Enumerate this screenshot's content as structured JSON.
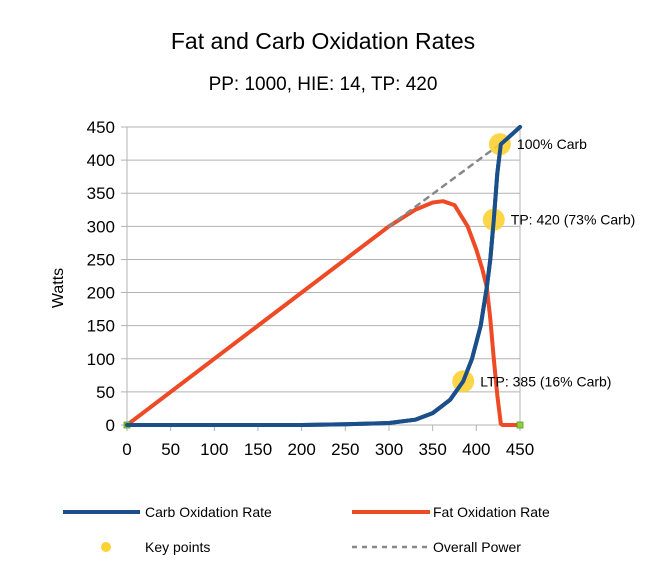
{
  "chart_data": {
    "type": "line",
    "title": "Fat and Carb Oxidation Rates",
    "subtitle": "PP: 1000, HIE: 14, TP: 420",
    "xlabel": "",
    "ylabel": "Watts",
    "xlim": [
      0,
      450
    ],
    "ylim": [
      0,
      450
    ],
    "xticks": [
      0,
      50,
      100,
      150,
      200,
      250,
      300,
      350,
      400,
      450
    ],
    "yticks": [
      0,
      50,
      100,
      150,
      200,
      250,
      300,
      350,
      400,
      450
    ],
    "grid": "horizontal",
    "legend_position": "bottom",
    "series": [
      {
        "name": "Carb Oxidation Rate",
        "color": "#1b4f8a",
        "style": "solid",
        "points": [
          [
            0,
            0
          ],
          [
            100,
            0
          ],
          [
            200,
            0
          ],
          [
            250,
            1
          ],
          [
            300,
            3
          ],
          [
            330,
            8
          ],
          [
            350,
            18
          ],
          [
            370,
            38
          ],
          [
            385,
            66
          ],
          [
            395,
            100
          ],
          [
            405,
            150
          ],
          [
            412,
            208
          ],
          [
            416,
            250
          ],
          [
            420,
            310
          ],
          [
            424,
            380
          ],
          [
            428,
            424
          ],
          [
            435,
            432
          ],
          [
            450,
            450
          ]
        ]
      },
      {
        "name": "Fat Oxidation Rate",
        "color": "#ee4a25",
        "style": "solid",
        "points": [
          [
            0,
            0
          ],
          [
            300,
            300
          ],
          [
            330,
            325
          ],
          [
            350,
            336
          ],
          [
            362,
            338
          ],
          [
            375,
            332
          ],
          [
            390,
            300
          ],
          [
            400,
            265
          ],
          [
            407,
            235
          ],
          [
            412,
            208
          ],
          [
            416,
            160
          ],
          [
            420,
            100
          ],
          [
            424,
            45
          ],
          [
            428,
            2
          ],
          [
            430,
            0
          ],
          [
            450,
            0
          ]
        ]
      },
      {
        "name": "Overall Power",
        "color": "#888888",
        "style": "dashed",
        "points": [
          [
            300,
            300
          ],
          [
            427,
            424
          ]
        ]
      }
    ],
    "key_points": {
      "name": "Key points",
      "color": "#fcd234",
      "points": [
        {
          "x": 385,
          "y": 66,
          "label": "LTP: 385 (16% Carb)"
        },
        {
          "x": 420,
          "y": 310,
          "label": "TP: 420 (73% Carb)"
        },
        {
          "x": 427,
          "y": 424,
          "label": "100% Carb"
        }
      ]
    },
    "legend": [
      "Carb Oxidation Rate",
      "Fat Oxidation Rate",
      "Key points",
      "Overall Power"
    ]
  }
}
